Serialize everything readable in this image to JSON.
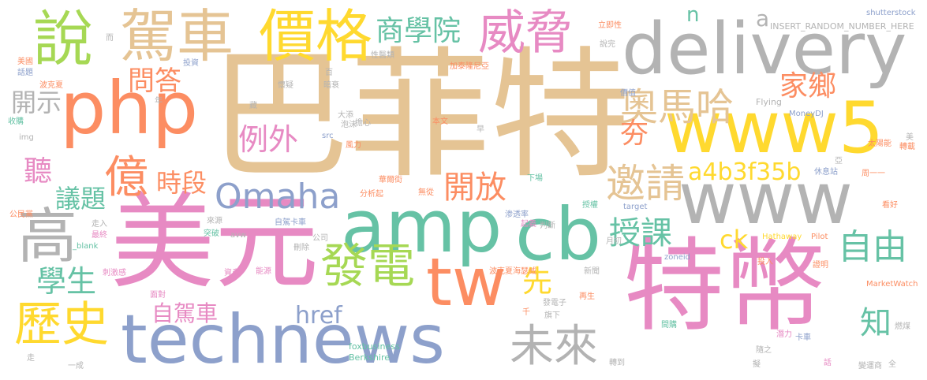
{
  "palette": {
    "tan": "#e5c494",
    "grey": "#b3b3b3",
    "orange": "#fc8d62",
    "green": "#66c2a5",
    "blue": "#8da0cb",
    "pink": "#e78ac3",
    "lime": "#a6d854",
    "yellow": "#ffd92f"
  },
  "words": {
    "w01": "巴菲特",
    "w02": "美元",
    "w03": "特幣",
    "w04": "delivery",
    "w05": "technews",
    "w06": "amp",
    "w07": "cb",
    "w08": "www5",
    "w09": "www",
    "w10": "php",
    "w11": "說",
    "w12": "駕車",
    "w13": "價格",
    "w14": "威脅",
    "w15": "tw",
    "w16": "發電",
    "w17": "高",
    "w18": "歷史",
    "w19": "未來",
    "w20": "Omaha",
    "w21": "邀請",
    "w22": "奧馬哈",
    "w23": "億",
    "w24": "商學院",
    "w25": "例外",
    "w26": "開放",
    "w27": "自由",
    "w28": "授課",
    "w29": "a4b3f35b",
    "w30": "時段",
    "w31": "問答",
    "w32": "家鄉",
    "w33": "學生",
    "w34": "自駕車",
    "w35": "href",
    "w36": "議題",
    "w37": "聽",
    "w38": "開示",
    "w39": "夯",
    "w40": "ck",
    "w41": "知",
    "w42": "先",
    "w43": "n",
    "w44": "a",
    "w45": "INSERT_RANDOM_NUMBER_HERE",
    "w46": "shutterstock",
    "w47": "foxbusiness",
    "w48": "Berkshire",
    "w49": "MarketWatch",
    "w50": "Hathaway",
    "w51": "Pilot",
    "w52": "zoneid",
    "w53": "MoneyDJ",
    "w54": "Flying",
    "w55": "avw",
    "w56": "_blank",
    "w57": "target",
    "w58": "src",
    "w59": "img",
    "w60": "立即性",
    "w61": "說完",
    "w62": "投資",
    "w63": "加泰隆尼亞",
    "w64": "性醫類",
    "w65": "美國",
    "w66": "話題",
    "w67": "波克夏",
    "w68": "收購",
    "w69": "公民黨",
    "w70": "走入",
    "w71": "最終",
    "w72": "來源",
    "w73": "能源",
    "w74": "資產",
    "w75": "面對",
    "w76": "判斷",
    "w77": "新聞",
    "w78": "太陽能",
    "w79": "轉載",
    "w80": "休息站",
    "w81": "周一一",
    "w82": "看好",
    "w83": "證明",
    "w84": "燃煤",
    "w85": "變運商",
    "w86": "全",
    "w87": "一成",
    "w88": "轉到",
    "w89": "潛力",
    "w90": "間購",
    "w91": "隨之",
    "w92": "卡車",
    "w93": "再生",
    "w94": "發電子",
    "w95": "旗下",
    "w96": "千",
    "w97": "波克夏海瑟威",
    "w98": "授權",
    "w99": "渗透率",
    "w100": "分析起",
    "w101": "下場",
    "w102": "無從",
    "w103": "華爾街",
    "w104": "起義",
    "w105": "本文",
    "w106": "風力",
    "w107": "大添",
    "w108": "擔心",
    "w109": "泡沫",
    "w110": "暗衰",
    "w111": "懷疑",
    "w112": "價值",
    "w113": "月初",
    "w114": "自駕卡車",
    "w115": "公司",
    "w116": "刪除",
    "w117": "剩餘",
    "w118": "美",
    "w119": "早",
    "w120": "而",
    "w121": "年",
    "w122": "藏",
    "w123": "百",
    "w124": "擬",
    "w125": "話",
    "w126": "走",
    "w127": "亞",
    "w128": "投入",
    "w129": "刺激感",
    "w130": "突破"
  }
}
